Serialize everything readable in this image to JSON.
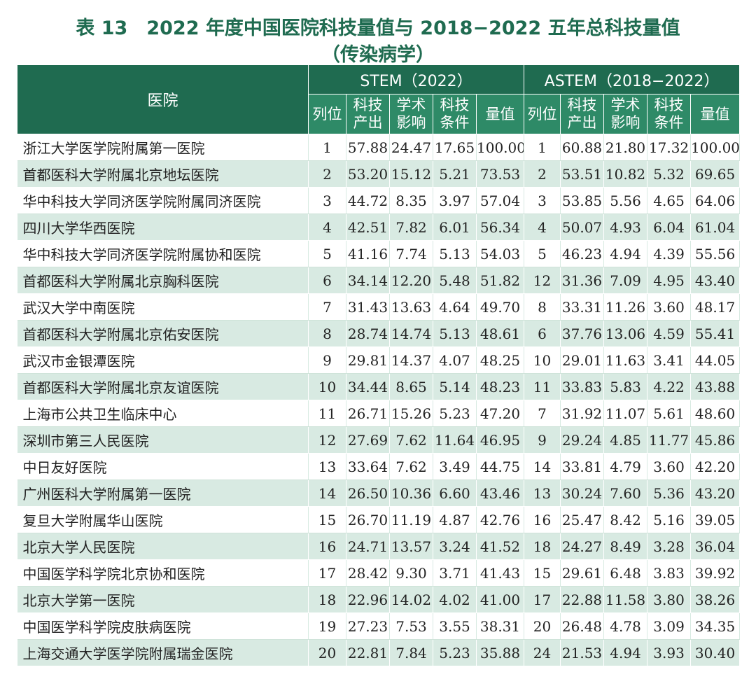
{
  "title_line1": "表 13　2022 年度中国医院科技量值与 2018−2022 五年总科技量值",
  "title_line2": "（传染病学）",
  "header": {
    "hospital": "医院",
    "stem_group": "STEM（2022）",
    "astem_group": "ASTEM（2018−2022）",
    "rank": "列位",
    "output": "科技\n产出",
    "influence": "学术\n影响",
    "conditions": "科技\n条件",
    "value": "量值"
  },
  "rows": [
    {
      "name": "浙江大学医学院附属第一医院",
      "s_rank": "1",
      "s_out": "57.88",
      "s_inf": "24.47",
      "s_cond": "17.65",
      "s_val": "100.00",
      "a_rank": "1",
      "a_out": "60.88",
      "a_inf": "21.80",
      "a_cond": "17.32",
      "a_val": "100.00"
    },
    {
      "name": "首都医科大学附属北京地坛医院",
      "s_rank": "2",
      "s_out": "53.20",
      "s_inf": "15.12",
      "s_cond": "5.21",
      "s_val": "73.53",
      "a_rank": "2",
      "a_out": "53.51",
      "a_inf": "10.82",
      "a_cond": "5.32",
      "a_val": "69.65"
    },
    {
      "name": "华中科技大学同济医学院附属同济医院",
      "s_rank": "3",
      "s_out": "44.72",
      "s_inf": "8.35",
      "s_cond": "3.97",
      "s_val": "57.04",
      "a_rank": "3",
      "a_out": "53.85",
      "a_inf": "5.56",
      "a_cond": "4.65",
      "a_val": "64.06"
    },
    {
      "name": "四川大学华西医院",
      "s_rank": "4",
      "s_out": "42.51",
      "s_inf": "7.82",
      "s_cond": "6.01",
      "s_val": "56.34",
      "a_rank": "4",
      "a_out": "50.07",
      "a_inf": "4.93",
      "a_cond": "6.04",
      "a_val": "61.04"
    },
    {
      "name": "华中科技大学同济医学院附属协和医院",
      "s_rank": "5",
      "s_out": "41.16",
      "s_inf": "7.74",
      "s_cond": "5.13",
      "s_val": "54.03",
      "a_rank": "5",
      "a_out": "46.23",
      "a_inf": "4.94",
      "a_cond": "4.39",
      "a_val": "55.56"
    },
    {
      "name": "首都医科大学附属北京胸科医院",
      "s_rank": "6",
      "s_out": "34.14",
      "s_inf": "12.20",
      "s_cond": "5.48",
      "s_val": "51.82",
      "a_rank": "12",
      "a_out": "31.36",
      "a_inf": "7.09",
      "a_cond": "4.95",
      "a_val": "43.40"
    },
    {
      "name": "武汉大学中南医院",
      "s_rank": "7",
      "s_out": "31.43",
      "s_inf": "13.63",
      "s_cond": "4.64",
      "s_val": "49.70",
      "a_rank": "8",
      "a_out": "33.31",
      "a_inf": "11.26",
      "a_cond": "3.60",
      "a_val": "48.17"
    },
    {
      "name": "首都医科大学附属北京佑安医院",
      "s_rank": "8",
      "s_out": "28.74",
      "s_inf": "14.74",
      "s_cond": "5.13",
      "s_val": "48.61",
      "a_rank": "6",
      "a_out": "37.76",
      "a_inf": "13.06",
      "a_cond": "4.59",
      "a_val": "55.41"
    },
    {
      "name": "武汉市金银潭医院",
      "s_rank": "9",
      "s_out": "29.81",
      "s_inf": "14.37",
      "s_cond": "4.07",
      "s_val": "48.25",
      "a_rank": "10",
      "a_out": "29.01",
      "a_inf": "11.63",
      "a_cond": "3.41",
      "a_val": "44.05"
    },
    {
      "name": "首都医科大学附属北京友谊医院",
      "s_rank": "10",
      "s_out": "34.44",
      "s_inf": "8.65",
      "s_cond": "5.14",
      "s_val": "48.23",
      "a_rank": "11",
      "a_out": "33.83",
      "a_inf": "5.83",
      "a_cond": "4.22",
      "a_val": "43.88"
    },
    {
      "name": "上海市公共卫生临床中心",
      "s_rank": "11",
      "s_out": "26.71",
      "s_inf": "15.26",
      "s_cond": "5.23",
      "s_val": "47.20",
      "a_rank": "7",
      "a_out": "31.92",
      "a_inf": "11.07",
      "a_cond": "5.61",
      "a_val": "48.60"
    },
    {
      "name": "深圳市第三人民医院",
      "s_rank": "12",
      "s_out": "27.69",
      "s_inf": "7.62",
      "s_cond": "11.64",
      "s_val": "46.95",
      "a_rank": "9",
      "a_out": "29.24",
      "a_inf": "4.85",
      "a_cond": "11.77",
      "a_val": "45.86"
    },
    {
      "name": "中日友好医院",
      "s_rank": "13",
      "s_out": "33.64",
      "s_inf": "7.62",
      "s_cond": "3.49",
      "s_val": "44.75",
      "a_rank": "14",
      "a_out": "33.81",
      "a_inf": "4.79",
      "a_cond": "3.60",
      "a_val": "42.20"
    },
    {
      "name": "广州医科大学附属第一医院",
      "s_rank": "14",
      "s_out": "26.50",
      "s_inf": "10.36",
      "s_cond": "6.60",
      "s_val": "43.46",
      "a_rank": "13",
      "a_out": "30.24",
      "a_inf": "7.60",
      "a_cond": "5.36",
      "a_val": "43.20"
    },
    {
      "name": "复旦大学附属华山医院",
      "s_rank": "15",
      "s_out": "26.70",
      "s_inf": "11.19",
      "s_cond": "4.87",
      "s_val": "42.76",
      "a_rank": "16",
      "a_out": "25.47",
      "a_inf": "8.42",
      "a_cond": "5.16",
      "a_val": "39.05"
    },
    {
      "name": "北京大学人民医院",
      "s_rank": "16",
      "s_out": "24.71",
      "s_inf": "13.57",
      "s_cond": "3.24",
      "s_val": "41.52",
      "a_rank": "18",
      "a_out": "24.27",
      "a_inf": "8.49",
      "a_cond": "3.28",
      "a_val": "36.04"
    },
    {
      "name": "中国医学科学院北京协和医院",
      "s_rank": "17",
      "s_out": "28.42",
      "s_inf": "9.30",
      "s_cond": "3.71",
      "s_val": "41.43",
      "a_rank": "15",
      "a_out": "29.61",
      "a_inf": "6.48",
      "a_cond": "3.83",
      "a_val": "39.92"
    },
    {
      "name": "北京大学第一医院",
      "s_rank": "18",
      "s_out": "22.96",
      "s_inf": "14.02",
      "s_cond": "4.02",
      "s_val": "41.00",
      "a_rank": "17",
      "a_out": "22.88",
      "a_inf": "11.58",
      "a_cond": "3.80",
      "a_val": "38.26"
    },
    {
      "name": "中国医学科学院皮肤病医院",
      "s_rank": "19",
      "s_out": "27.23",
      "s_inf": "7.53",
      "s_cond": "3.55",
      "s_val": "38.31",
      "a_rank": "20",
      "a_out": "26.48",
      "a_inf": "4.78",
      "a_cond": "3.09",
      "a_val": "34.35"
    },
    {
      "name": "上海交通大学医学院附属瑞金医院",
      "s_rank": "20",
      "s_out": "22.81",
      "s_inf": "7.84",
      "s_cond": "5.23",
      "s_val": "35.88",
      "a_rank": "24",
      "a_out": "21.53",
      "a_inf": "4.94",
      "a_cond": "3.93",
      "a_val": "30.40"
    }
  ]
}
